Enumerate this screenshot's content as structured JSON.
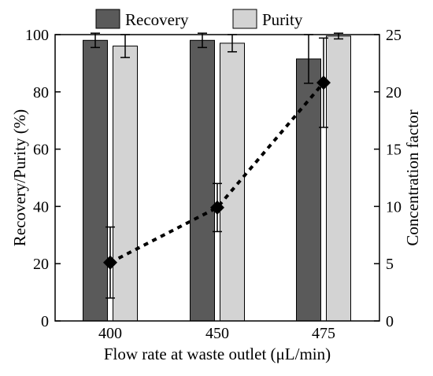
{
  "chart_data": {
    "type": "bar",
    "categories": [
      "400",
      "450",
      "475"
    ],
    "xlabel": "Flow rate at waste outlet (μL/min)",
    "ylabel": "Recovery/Purity (%)",
    "y2label": "Concentration factor",
    "ylim": [
      0,
      100
    ],
    "y2lim": [
      0,
      25
    ],
    "yticks": [
      0,
      20,
      40,
      60,
      80,
      100
    ],
    "y2ticks": [
      0,
      5,
      10,
      15,
      20,
      25
    ],
    "legend_position": "top",
    "grid": false,
    "series": [
      {
        "name": "Recovery",
        "axis": "left",
        "kind": "bar",
        "color": "#5a5a5a",
        "values": [
          98,
          98,
          91.5
        ],
        "errors": [
          2.5,
          2.5,
          8.5
        ]
      },
      {
        "name": "Purity",
        "axis": "left",
        "kind": "bar",
        "color": "#d3d3d3",
        "values": [
          96,
          97,
          99.5
        ],
        "errors": [
          4,
          3,
          1
        ]
      },
      {
        "axis": "right",
        "kind": "line",
        "style": "dotted",
        "marker": "diamond",
        "color": "#000000",
        "values": [
          5.1,
          9.9,
          20.8
        ],
        "errors": [
          3.1,
          2.1,
          3.9
        ]
      }
    ]
  }
}
